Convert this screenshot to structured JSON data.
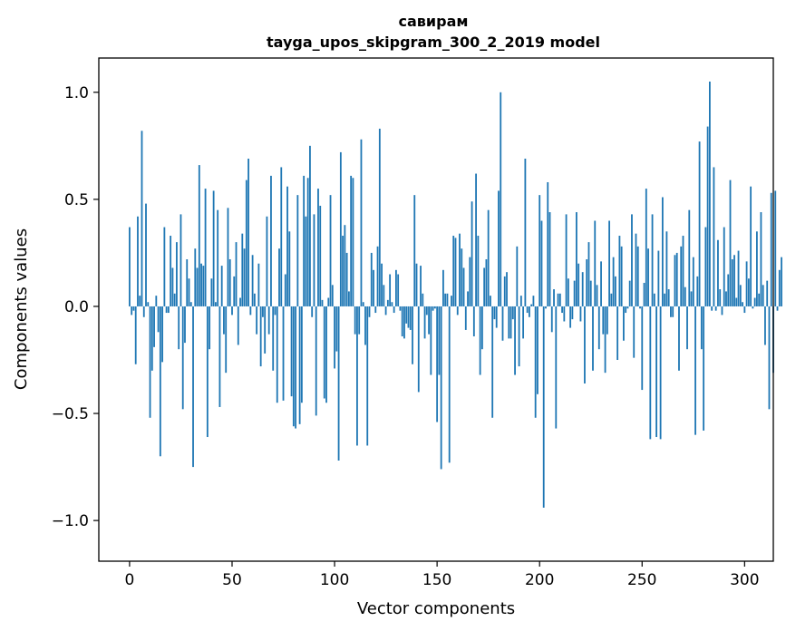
{
  "chart_data": {
    "type": "bar",
    "title": "савирам",
    "subtitle": "tayga_upos_skipgram_300_2_2019 model",
    "xlabel": "Vector components",
    "ylabel": "Components values",
    "xlim": [
      -15,
      314
    ],
    "ylim": [
      -1.19,
      1.16
    ],
    "x_ticks": [
      0,
      50,
      100,
      150,
      200,
      250,
      300
    ],
    "x_tick_labels": [
      "0",
      "50",
      "100",
      "150",
      "200",
      "250",
      "300"
    ],
    "y_ticks": [
      -1.0,
      -0.5,
      0.0,
      0.5,
      1.0
    ],
    "y_tick_labels": [
      "−1.0",
      "−0.5",
      "0.0",
      "0.5",
      "1.0"
    ],
    "grid": false,
    "bar_color": "#1f77b4",
    "x_start": 0,
    "values": [
      0.37,
      -0.04,
      -0.02,
      -0.27,
      0.42,
      0.05,
      0.82,
      -0.05,
      0.48,
      0.02,
      -0.52,
      -0.3,
      -0.19,
      0.05,
      -0.12,
      -0.7,
      -0.26,
      0.37,
      -0.03,
      -0.03,
      0.33,
      0.18,
      0.06,
      0.3,
      -0.2,
      0.43,
      -0.48,
      -0.17,
      0.22,
      0.13,
      0.02,
      -0.75,
      0.27,
      0.18,
      0.66,
      0.2,
      0.19,
      0.55,
      -0.61,
      -0.2,
      0.13,
      0.54,
      0.02,
      0.45,
      -0.47,
      0.19,
      -0.13,
      -0.31,
      0.46,
      0.22,
      -0.04,
      0.14,
      0.3,
      -0.18,
      0.04,
      0.34,
      0.27,
      0.59,
      0.69,
      -0.04,
      0.24,
      0.06,
      -0.13,
      0.2,
      -0.28,
      -0.05,
      -0.22,
      0.42,
      -0.13,
      0.61,
      -0.3,
      -0.04,
      -0.45,
      0.27,
      0.65,
      -0.44,
      0.15,
      0.56,
      0.35,
      -0.42,
      -0.56,
      -0.57,
      0.52,
      -0.55,
      -0.45,
      0.61,
      0.42,
      0.6,
      0.75,
      -0.05,
      0.43,
      -0.51,
      0.55,
      0.47,
      0.03,
      -0.43,
      -0.45,
      0.04,
      0.52,
      0.1,
      -0.29,
      -0.21,
      -0.72,
      0.72,
      0.33,
      0.38,
      0.25,
      0.07,
      0.61,
      0.6,
      -0.13,
      -0.65,
      -0.13,
      0.78,
      0.02,
      -0.18,
      -0.65,
      -0.05,
      0.25,
      0.17,
      -0.03,
      0.28,
      0.83,
      0.2,
      0.1,
      -0.04,
      0.03,
      0.15,
      0.02,
      -0.03,
      0.17,
      0.15,
      -0.02,
      -0.14,
      -0.15,
      -0.08,
      -0.1,
      -0.11,
      -0.27,
      0.52,
      0.2,
      -0.4,
      0.19,
      0.06,
      -0.15,
      -0.04,
      -0.13,
      -0.32,
      -0.02,
      -0.01,
      -0.54,
      -0.32,
      -0.76,
      0.17,
      0.06,
      0.06,
      -0.73,
      0.05,
      0.33,
      0.32,
      -0.04,
      0.34,
      0.27,
      0.18,
      -0.11,
      0.07,
      0.23,
      0.49,
      -0.14,
      0.62,
      0.33,
      -0.32,
      -0.2,
      0.18,
      0.22,
      0.45,
      0.05,
      -0.52,
      -0.06,
      -0.1,
      0.54,
      1.0,
      -0.16,
      0.14,
      0.16,
      -0.15,
      -0.15,
      -0.06,
      -0.32,
      0.28,
      -0.28,
      0.05,
      -0.15,
      0.69,
      -0.03,
      -0.05,
      0.01,
      0.05,
      -0.52,
      -0.41,
      0.52,
      0.4,
      -0.94,
      -0.01,
      0.58,
      0.44,
      -0.12,
      0.08,
      -0.57,
      0.06,
      0.06,
      -0.03,
      -0.07,
      0.43,
      0.13,
      -0.1,
      -0.06,
      0.12,
      0.44,
      0.2,
      -0.07,
      0.16,
      -0.36,
      0.22,
      0.3,
      0.12,
      -0.3,
      0.4,
      0.1,
      -0.2,
      0.21,
      -0.13,
      -0.31,
      -0.13,
      0.4,
      0.06,
      0.23,
      0.14,
      -0.25,
      0.33,
      0.28,
      -0.16,
      -0.03,
      -0.01,
      0.12,
      0.43,
      -0.24,
      0.34,
      0.28,
      -0.01,
      -0.39,
      0.11,
      0.55,
      0.27,
      -0.62,
      0.43,
      0.06,
      -0.61,
      0.26,
      -0.62,
      0.51,
      0.06,
      0.35,
      0.08,
      -0.05,
      -0.05,
      0.24,
      0.25,
      -0.3,
      0.28,
      0.33,
      0.09,
      -0.2,
      0.45,
      0.07,
      0.23,
      -0.6,
      0.14,
      0.77,
      -0.2,
      -0.58,
      0.37,
      0.84,
      1.05,
      -0.02,
      0.65,
      -0.02,
      0.31,
      0.08,
      -0.04,
      0.37,
      0.07,
      0.15,
      0.59,
      0.22,
      0.24,
      0.04,
      0.26,
      0.1,
      0.02,
      -0.03,
      0.21,
      0.13,
      0.56,
      -0.01,
      0.04,
      0.35,
      0.06,
      0.44,
      0.1,
      -0.18,
      0.12,
      -0.48,
      0.53,
      -0.31,
      0.54,
      -0.02,
      0.17,
      0.23
    ]
  }
}
